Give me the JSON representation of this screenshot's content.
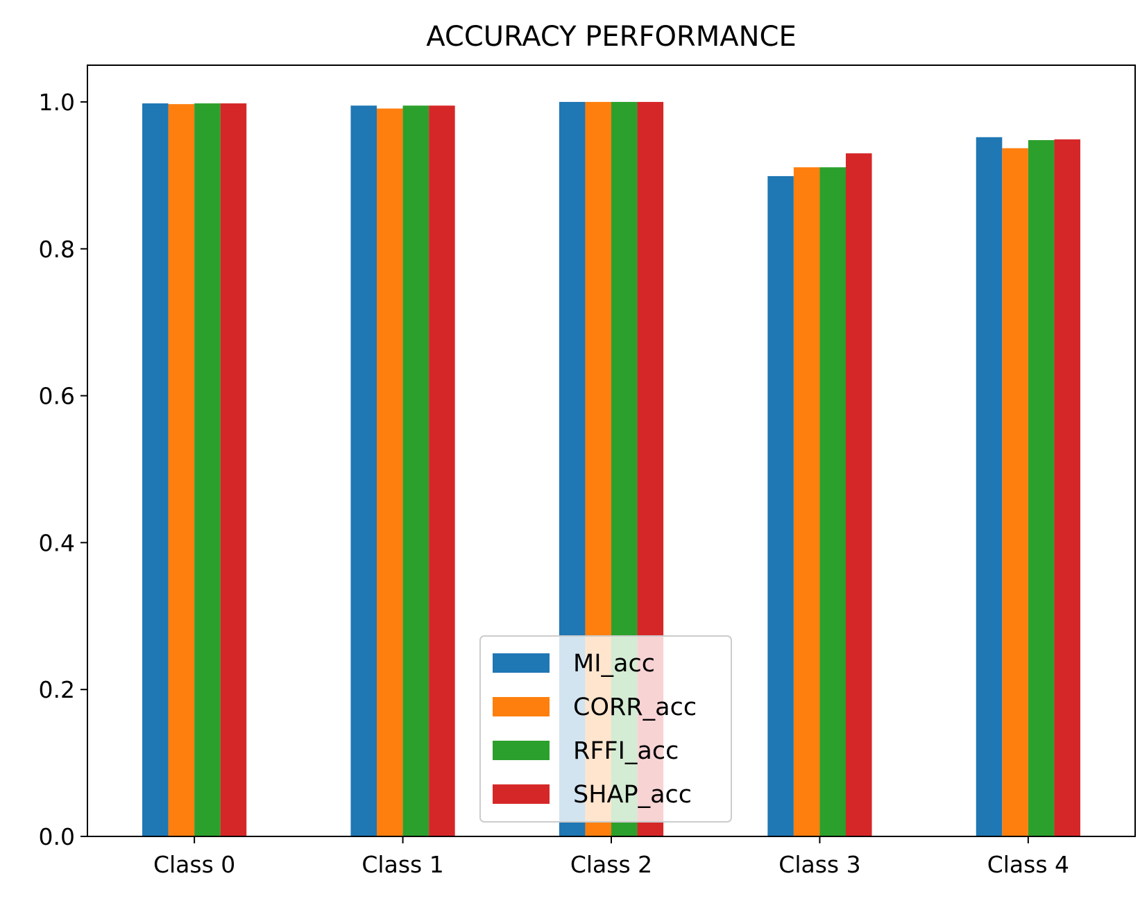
{
  "chart_data": {
    "type": "bar",
    "title": "ACCURACY PERFORMANCE",
    "xlabel": "",
    "ylabel": "",
    "categories": [
      "Class 0",
      "Class 1",
      "Class 2",
      "Class 3",
      "Class 4"
    ],
    "series": [
      {
        "name": "MI_acc",
        "color": "#1f77b4",
        "values": [
          0.998,
          0.995,
          1.0,
          0.899,
          0.952
        ]
      },
      {
        "name": "CORR_acc",
        "color": "#ff7f0e",
        "values": [
          0.997,
          0.991,
          1.0,
          0.911,
          0.937
        ]
      },
      {
        "name": "RFFI_acc",
        "color": "#2ca02c",
        "values": [
          0.998,
          0.995,
          1.0,
          0.911,
          0.948
        ]
      },
      {
        "name": "SHAP_acc",
        "color": "#d62728",
        "values": [
          0.998,
          0.995,
          1.0,
          0.93,
          0.949
        ]
      }
    ],
    "ylim": [
      0,
      1.05
    ],
    "yticks": [
      "0.0",
      "0.2",
      "0.4",
      "0.6",
      "0.8",
      "1.0"
    ],
    "grid": false,
    "legend_position": "lower-center"
  }
}
